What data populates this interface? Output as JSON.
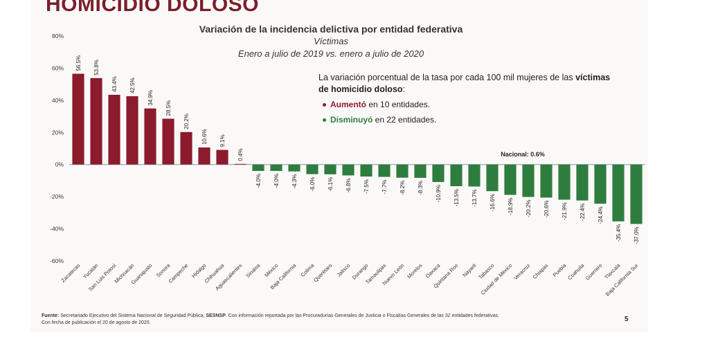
{
  "page": {
    "title": "HOMICIDIO DOLOSO",
    "note_text": "La variación porcentual de la tasa por cada 100 mil mujeres de las",
    "note_bold": "víctimas de homicidio doloso",
    "note_colon": ":",
    "bullet_up_bold": "Aumentó",
    "bullet_up_rest": " en 10 entidades.",
    "bullet_down_bold": "Disminuyó",
    "bullet_down_rest": " en 22 entidades.",
    "footer_label": "Fuente:",
    "footer_text1": " Secretariado Ejecutivo del Sistema Nacional de Seguridad Pública, ",
    "footer_bold2": "SESNSP",
    "footer_text2": ". Con información reportada por las Procuradurías Generales de Justicia o Fiscalías Generales de las 32 entidades federativas.",
    "footer_line2": "Con fecha de publicación el 20 de agosto de 2020.",
    "page_number": "5"
  },
  "colors": {
    "increase": "#8c1b2d",
    "decrease": "#2f7d3e",
    "axis": "#9aa7b7"
  },
  "chart_data": {
    "type": "bar",
    "title": "Variación de la incidencia delictiva por entidad federativa",
    "subtitle": "Víctimas",
    "period": "Enero a julio de 2019 vs. enero a julio de 2020",
    "xlabel": "",
    "ylabel": "",
    "ylim": [
      -60,
      80
    ],
    "yticks": [
      80,
      60,
      40,
      20,
      0,
      -20,
      -40,
      -60
    ],
    "ytick_labels": [
      "80%",
      "60%",
      "40%",
      "20%",
      "0%",
      "-20%",
      "-40%",
      "-60%"
    ],
    "grid": false,
    "categories": [
      "Zacatecas",
      "Yucatán",
      "San Luis Potosí",
      "Michoacán",
      "Guanajuato",
      "Sonora",
      "Campeche",
      "Hidalgo",
      "Chihuahua",
      "Aguascalientes",
      "Sinaloa",
      "México",
      "Baja California",
      "Colima",
      "Querétaro",
      "Jalisco",
      "Durango",
      "Tamaulipas",
      "Nuevo León",
      "Morelos",
      "Oaxaca",
      "Quintana Roo",
      "Nayarit",
      "Tabasco",
      "Ciudad de México",
      "Veracruz",
      "Chiapas",
      "Puebla",
      "Coahuila",
      "Guerrero",
      "Tlaxcala",
      "Baja California Sur"
    ],
    "values": [
      56.5,
      53.8,
      43.4,
      42.5,
      34.9,
      28.5,
      20.2,
      10.6,
      9.1,
      0.4,
      -4.0,
      -4.0,
      -4.3,
      -6.0,
      -6.1,
      -6.8,
      -7.5,
      -7.7,
      -8.2,
      -8.3,
      -10.9,
      -13.5,
      -13.7,
      -16.6,
      -18.9,
      -20.2,
      -20.6,
      -21.9,
      -22.4,
      -24.4,
      -35.4,
      -37.0
    ],
    "value_labels": [
      "56.5%",
      "53.8%",
      "43.4%",
      "42.5%",
      "34.9%",
      "28.5%",
      "20.2%",
      "10.6%",
      "9.1%",
      "0.4%",
      "-4.0%",
      "-4.0%",
      "-4.3%",
      "-6.0%",
      "-6.1%",
      "-6.8%",
      "-7.5%",
      "-7.7%",
      "-8.2%",
      "-8.3%",
      "-10.9%",
      "-13.5%",
      "-13.7%",
      "-16.6%",
      "-18.9%",
      "-20.2%",
      "-20.6%",
      "-21.9%",
      "-22.4%",
      "-24.4%",
      "-35.4%",
      "-37.0%"
    ],
    "reference": {
      "label": "Nacional: 0.6%",
      "value": 0.6
    }
  }
}
